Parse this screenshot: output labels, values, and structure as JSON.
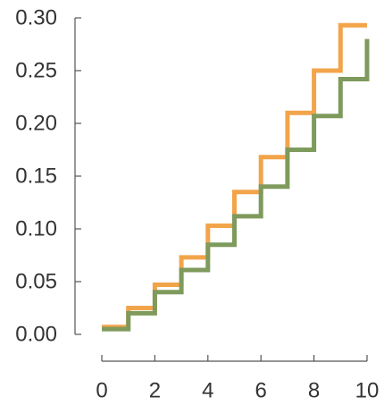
{
  "chart_data": {
    "type": "line",
    "step": "post",
    "title": "",
    "xlabel": "",
    "ylabel": "",
    "xlim": [
      0,
      10
    ],
    "ylim": [
      0.0,
      0.3
    ],
    "xticks": [
      0,
      2,
      4,
      6,
      8,
      10
    ],
    "xtick_labels": [
      "0",
      "2",
      "4",
      "6",
      "8",
      "10"
    ],
    "yticks": [
      0.0,
      0.05,
      0.1,
      0.15,
      0.2,
      0.25,
      0.3
    ],
    "ytick_labels": [
      "0.00",
      "0.05",
      "0.10",
      "0.15",
      "0.20",
      "0.25",
      "0.30"
    ],
    "grid": false,
    "legend": "none",
    "x": [
      0,
      1,
      2,
      3,
      4,
      5,
      6,
      7,
      8,
      9,
      10
    ],
    "series": [
      {
        "color": "#f2a44a",
        "values": [
          0.007,
          0.025,
          0.047,
          0.073,
          0.103,
          0.135,
          0.168,
          0.21,
          0.25,
          0.293,
          0.293
        ]
      },
      {
        "color": "#7e9a5c",
        "values": [
          0.005,
          0.02,
          0.04,
          0.061,
          0.085,
          0.112,
          0.14,
          0.175,
          0.207,
          0.242,
          0.28
        ]
      }
    ]
  }
}
